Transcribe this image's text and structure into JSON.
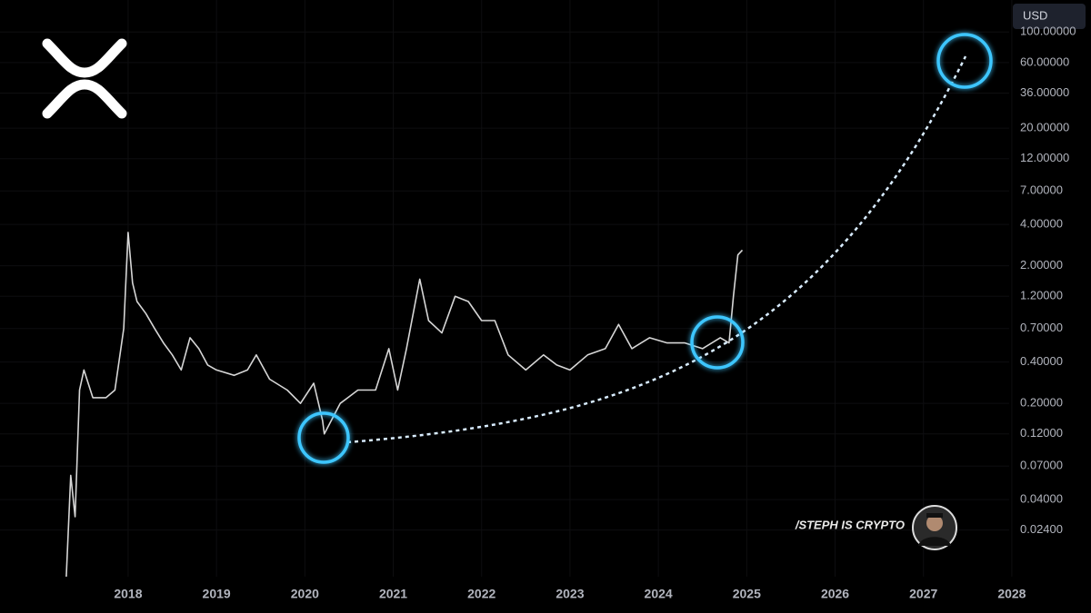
{
  "chart_data": {
    "type": "line",
    "log_scale": true,
    "grid": true,
    "color": "#d6d6d6",
    "currency_label": "USD",
    "watermark": "/STEPH IS CRYPTO",
    "x": [
      2017.3,
      2017.35,
      2017.4,
      2017.45,
      2017.5,
      2017.6,
      2017.75,
      2017.85,
      2017.95,
      2018.0,
      2018.05,
      2018.1,
      2018.2,
      2018.3,
      2018.4,
      2018.5,
      2018.6,
      2018.7,
      2018.8,
      2018.9,
      2019.0,
      2019.2,
      2019.35,
      2019.45,
      2019.6,
      2019.8,
      2019.95,
      2020.1,
      2020.2,
      2020.22,
      2020.4,
      2020.6,
      2020.8,
      2020.95,
      2021.05,
      2021.15,
      2021.3,
      2021.4,
      2021.55,
      2021.7,
      2021.85,
      2022.0,
      2022.15,
      2022.3,
      2022.5,
      2022.7,
      2022.85,
      2023.0,
      2023.2,
      2023.4,
      2023.55,
      2023.7,
      2023.9,
      2024.1,
      2024.3,
      2024.5,
      2024.7,
      2024.8,
      2024.85,
      2024.9,
      2024.95
    ],
    "values": [
      0.011,
      0.06,
      0.03,
      0.25,
      0.35,
      0.22,
      0.22,
      0.25,
      0.7,
      3.5,
      1.5,
      1.1,
      0.9,
      0.7,
      0.55,
      0.45,
      0.35,
      0.6,
      0.5,
      0.38,
      0.35,
      0.32,
      0.35,
      0.45,
      0.3,
      0.25,
      0.2,
      0.28,
      0.15,
      0.12,
      0.2,
      0.25,
      0.25,
      0.5,
      0.25,
      0.5,
      1.6,
      0.8,
      0.65,
      1.2,
      1.1,
      0.8,
      0.8,
      0.45,
      0.35,
      0.45,
      0.38,
      0.35,
      0.45,
      0.5,
      0.75,
      0.5,
      0.6,
      0.55,
      0.55,
      0.5,
      0.6,
      0.55,
      1.2,
      2.4,
      2.6
    ],
    "xlim": [
      2016.55,
      2027.97
    ],
    "xticks": [
      2018,
      2019,
      2020,
      2021,
      2022,
      2023,
      2024,
      2025,
      2026,
      2027,
      2028
    ],
    "ylim": [
      0.011,
      171
    ],
    "yticks": [
      {
        "value": 100,
        "label": "100.00000"
      },
      {
        "value": 60,
        "label": "60.00000"
      },
      {
        "value": 36,
        "label": "36.00000"
      },
      {
        "value": 20,
        "label": "20.00000"
      },
      {
        "value": 12,
        "label": "12.00000"
      },
      {
        "value": 7,
        "label": "7.00000"
      },
      {
        "value": 4,
        "label": "4.00000"
      },
      {
        "value": 2,
        "label": "2.00000"
      },
      {
        "value": 1.2,
        "label": "1.20000"
      },
      {
        "value": 0.7,
        "label": "0.70000"
      },
      {
        "value": 0.4,
        "label": "0.40000"
      },
      {
        "value": 0.2,
        "label": "0.20000"
      },
      {
        "value": 0.12,
        "label": "0.12000"
      },
      {
        "value": 0.07,
        "label": "0.07000"
      },
      {
        "value": 0.04,
        "label": "0.04000"
      },
      {
        "value": 0.024,
        "label": "0.02400"
      }
    ]
  }
}
